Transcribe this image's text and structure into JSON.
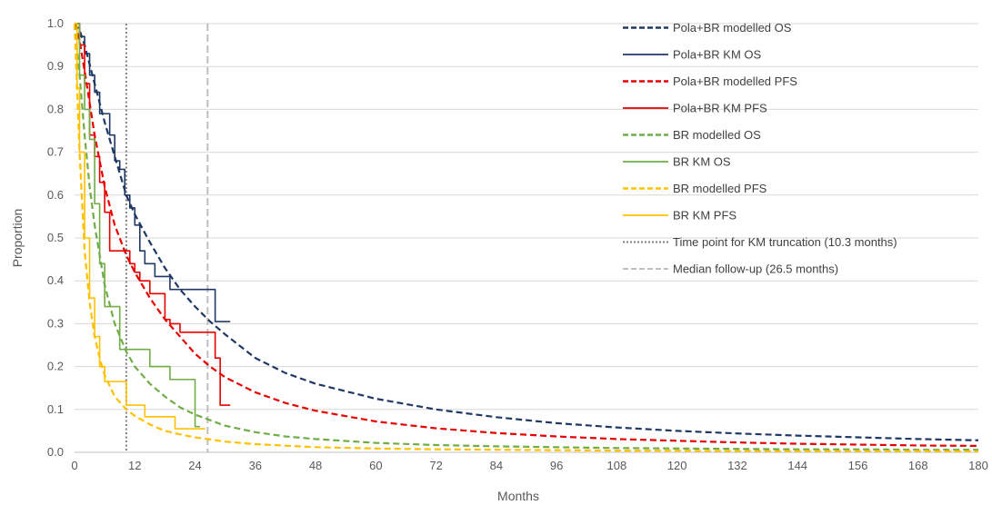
{
  "chart_data": {
    "type": "line",
    "title": "",
    "xlabel": "Months",
    "ylabel": "Proportion",
    "xlim": [
      0,
      180
    ],
    "ylim": [
      0,
      1
    ],
    "x_ticks": [
      "0",
      "12",
      "24",
      "36",
      "48",
      "60",
      "72",
      "84",
      "96",
      "108",
      "120",
      "132",
      "144",
      "156",
      "168",
      "180"
    ],
    "y_ticks": [
      "0.0",
      "0.1",
      "0.2",
      "0.3",
      "0.4",
      "0.5",
      "0.6",
      "0.7",
      "0.8",
      "0.9",
      "1.0"
    ],
    "grid": "horizontal",
    "legend_position": "top-right",
    "series": [
      {
        "name": "Pola+BR modelled OS",
        "color": "#1F3864",
        "style": "dashed",
        "x": [
          0,
          1,
          2,
          4,
          6,
          8,
          10.3,
          12,
          15,
          18,
          21,
          24,
          27,
          30,
          36,
          42,
          48,
          60,
          72,
          84,
          96,
          108,
          120,
          132,
          144,
          156,
          168,
          180
        ],
        "y": [
          1.0,
          0.985,
          0.95,
          0.86,
          0.77,
          0.69,
          0.6,
          0.555,
          0.49,
          0.43,
          0.38,
          0.34,
          0.305,
          0.275,
          0.22,
          0.185,
          0.16,
          0.125,
          0.1,
          0.082,
          0.068,
          0.058,
          0.05,
          0.044,
          0.039,
          0.035,
          0.031,
          0.028
        ]
      },
      {
        "name": "Pola+BR KM OS",
        "color": "#1F3864",
        "style": "step",
        "x": [
          0,
          1,
          2,
          3,
          4,
          5,
          6,
          7,
          8,
          9,
          10,
          11,
          12,
          13,
          14,
          15,
          16,
          18,
          19,
          27,
          28,
          31
        ],
        "y": [
          1.0,
          0.97,
          0.93,
          0.88,
          0.84,
          0.79,
          0.79,
          0.74,
          0.68,
          0.66,
          0.6,
          0.57,
          0.53,
          0.47,
          0.44,
          0.44,
          0.41,
          0.41,
          0.38,
          0.38,
          0.305,
          0.305
        ]
      },
      {
        "name": "Pola+BR modelled PFS",
        "color": "#E60000",
        "style": "dashed",
        "x": [
          0,
          1,
          2,
          4,
          6,
          8,
          10.3,
          12,
          15,
          18,
          21,
          24,
          27,
          30,
          36,
          42,
          48,
          60,
          72,
          84,
          96,
          108,
          120,
          132,
          144,
          156,
          168,
          180
        ],
        "y": [
          1.0,
          0.96,
          0.89,
          0.74,
          0.62,
          0.53,
          0.46,
          0.42,
          0.36,
          0.31,
          0.27,
          0.23,
          0.2,
          0.175,
          0.14,
          0.115,
          0.097,
          0.072,
          0.056,
          0.045,
          0.037,
          0.031,
          0.027,
          0.023,
          0.02,
          0.018,
          0.016,
          0.015
        ]
      },
      {
        "name": "Pola+BR KM PFS",
        "color": "#E60000",
        "style": "step",
        "x": [
          0,
          1,
          2,
          3,
          4,
          5,
          6,
          7,
          9,
          10.3,
          11,
          12,
          13,
          15,
          16,
          17,
          18,
          19,
          20,
          21,
          22,
          23,
          28,
          29,
          30,
          31
        ],
        "y": [
          1.0,
          0.95,
          0.86,
          0.74,
          0.69,
          0.63,
          0.56,
          0.47,
          0.47,
          0.47,
          0.44,
          0.42,
          0.4,
          0.37,
          0.37,
          0.37,
          0.31,
          0.3,
          0.3,
          0.28,
          0.28,
          0.28,
          0.22,
          0.11,
          0.11,
          0.11
        ]
      },
      {
        "name": "BR modelled OS",
        "color": "#70AD47",
        "style": "dashed",
        "x": [
          0,
          1,
          2,
          3,
          4,
          6,
          8,
          10.3,
          12,
          15,
          18,
          21,
          24,
          30,
          36,
          42,
          48,
          60,
          72,
          84,
          96,
          108,
          120,
          132,
          144,
          156,
          168,
          180
        ],
        "y": [
          1.0,
          0.88,
          0.74,
          0.62,
          0.53,
          0.39,
          0.3,
          0.235,
          0.2,
          0.16,
          0.13,
          0.105,
          0.088,
          0.062,
          0.047,
          0.037,
          0.031,
          0.022,
          0.017,
          0.014,
          0.012,
          0.01,
          0.009,
          0.008,
          0.007,
          0.007,
          0.006,
          0.006
        ]
      },
      {
        "name": "BR KM OS",
        "color": "#70AD47",
        "style": "step",
        "x": [
          0,
          1,
          2,
          3,
          4,
          5,
          6,
          7,
          8,
          9,
          10,
          12,
          15,
          17,
          19,
          21,
          24,
          25
        ],
        "y": [
          1.0,
          0.88,
          0.8,
          0.73,
          0.58,
          0.44,
          0.34,
          0.34,
          0.34,
          0.24,
          0.24,
          0.24,
          0.2,
          0.2,
          0.17,
          0.17,
          0.06,
          0.06
        ]
      },
      {
        "name": "BR modelled PFS",
        "color": "#FFC000",
        "style": "dashed",
        "x": [
          0,
          0.5,
          1,
          2,
          3,
          4,
          5,
          6,
          8,
          10.3,
          12,
          15,
          18,
          21,
          24,
          30,
          36,
          48,
          60,
          72,
          84,
          96,
          108,
          120,
          132,
          144,
          156,
          168,
          180
        ],
        "y": [
          1.0,
          0.85,
          0.7,
          0.47,
          0.35,
          0.27,
          0.22,
          0.18,
          0.13,
          0.1,
          0.085,
          0.065,
          0.05,
          0.042,
          0.035,
          0.025,
          0.019,
          0.012,
          0.009,
          0.007,
          0.006,
          0.005,
          0.004,
          0.004,
          0.003,
          0.003,
          0.003,
          0.003,
          0.002
        ]
      },
      {
        "name": "BR KM PFS",
        "color": "#FFC000",
        "style": "step",
        "x": [
          0,
          0.5,
          1,
          2,
          3,
          4,
          5,
          6,
          9,
          10.3,
          11,
          12,
          14,
          18,
          20,
          21,
          25,
          26
        ],
        "y": [
          1.0,
          0.85,
          0.7,
          0.5,
          0.36,
          0.27,
          0.2,
          0.165,
          0.165,
          0.11,
          0.11,
          0.11,
          0.083,
          0.083,
          0.055,
          0.055,
          0.055,
          0.055
        ]
      },
      {
        "name": "Time point for KM truncation (10.3 months)",
        "color": "#7F7F7F",
        "style": "dotted-vertical",
        "value": 10.3
      },
      {
        "name": "Median follow-up (26.5 months)",
        "color": "#BFBFBF",
        "style": "dashed-vertical",
        "value": 26.5
      }
    ]
  }
}
